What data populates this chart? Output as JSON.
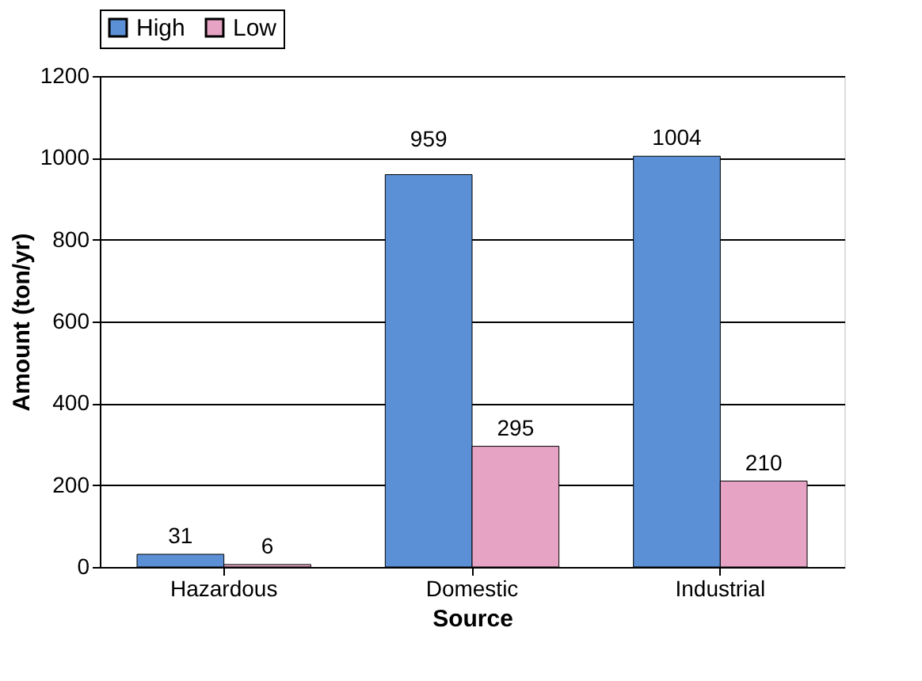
{
  "chart_data": {
    "type": "bar",
    "xlabel": "Source",
    "ylabel": "Amount (ton/yr)",
    "categories": [
      "Hazardous",
      "Domestic",
      "Industrial"
    ],
    "series": [
      {
        "name": "High",
        "color": "#5b8fd6",
        "values": [
          31,
          959,
          1004
        ]
      },
      {
        "name": "Low",
        "color": "#e6a3c4",
        "values": [
          6,
          295,
          210
        ]
      }
    ],
    "ylim": [
      0,
      1200
    ],
    "yticks": [
      0,
      200,
      400,
      600,
      800,
      1000,
      1200
    ],
    "grid": "y",
    "legend": "top",
    "data_labels": true
  }
}
